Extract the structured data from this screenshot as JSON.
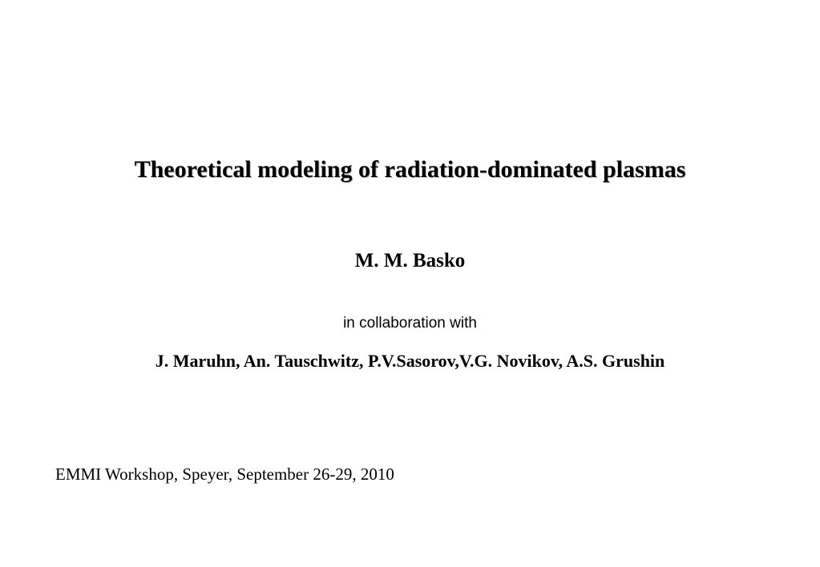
{
  "slide": {
    "title": "Theoretical modeling of radiation-dominated plasmas",
    "author": "M. M. Basko",
    "collaboration_label": "in collaboration with",
    "collaborators": "J. Maruhn, An. Tauschwitz, P.V.Sasorov,V.G. Novikov, A.S. Grushin",
    "venue": "EMMI Workshop, Speyer, September 26-29, 2010"
  },
  "style": {
    "background_color": "#ffffff",
    "text_color": "#000000",
    "title_fontsize": 30,
    "author_fontsize": 25,
    "collab_label_fontsize": 19,
    "collaborators_fontsize": 22,
    "venue_fontsize": 21,
    "font_family_serif": "Times New Roman",
    "font_family_sans": "Arial"
  }
}
